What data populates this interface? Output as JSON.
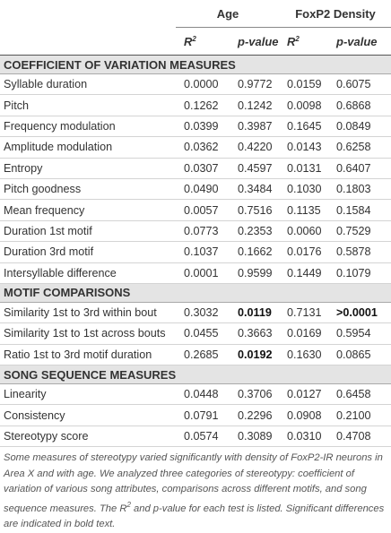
{
  "table": {
    "groups": [
      "Age",
      "FoxP2 Density"
    ],
    "columns": [
      {
        "text": "R",
        "sup": "2"
      },
      "p-value",
      {
        "text": "R",
        "sup": "2"
      },
      "p-value"
    ],
    "sections": [
      {
        "title": "COEFFICIENT OF VARIATION MEASURES",
        "rows": [
          {
            "label": "Syllable duration",
            "cells": [
              "0.0000",
              "0.9772",
              "0.0159",
              "0.6075"
            ]
          },
          {
            "label": "Pitch",
            "cells": [
              "0.1262",
              "0.1242",
              "0.0098",
              "0.6868"
            ]
          },
          {
            "label": "Frequency modulation",
            "cells": [
              "0.0399",
              "0.3987",
              "0.1645",
              "0.0849"
            ]
          },
          {
            "label": "Amplitude modulation",
            "cells": [
              "0.0362",
              "0.4220",
              "0.0143",
              "0.6258"
            ]
          },
          {
            "label": "Entropy",
            "cells": [
              "0.0307",
              "0.4597",
              "0.0131",
              "0.6407"
            ]
          },
          {
            "label": "Pitch goodness",
            "cells": [
              "0.0490",
              "0.3484",
              "0.1030",
              "0.1803"
            ]
          },
          {
            "label": "Mean frequency",
            "cells": [
              "0.0057",
              "0.7516",
              "0.1135",
              "0.1584"
            ]
          },
          {
            "label": "Duration 1st motif",
            "cells": [
              "0.0773",
              "0.2353",
              "0.0060",
              "0.7529"
            ]
          },
          {
            "label": "Duration 3rd motif",
            "cells": [
              "0.1037",
              "0.1662",
              "0.0176",
              "0.5878"
            ]
          },
          {
            "label": "Intersyllable difference",
            "cells": [
              "0.0001",
              "0.9599",
              "0.1449",
              "0.1079"
            ]
          }
        ]
      },
      {
        "title": "MOTIF COMPARISONS",
        "rows": [
          {
            "label": "Similarity 1st to 3rd within bout",
            "cells": [
              "0.3032",
              {
                "text": "0.0119",
                "bold": true
              },
              "0.7131",
              {
                "text": ">0.0001",
                "bold": true
              }
            ]
          },
          {
            "label": "Similarity 1st to 1st across bouts",
            "cells": [
              "0.0455",
              "0.3663",
              "0.0169",
              "0.5954"
            ]
          },
          {
            "label": "Ratio 1st to 3rd motif duration",
            "cells": [
              "0.2685",
              {
                "text": "0.0192",
                "bold": true
              },
              "0.1630",
              "0.0865"
            ]
          }
        ]
      },
      {
        "title": "SONG SEQUENCE MEASURES",
        "rows": [
          {
            "label": "Linearity",
            "cells": [
              "0.0448",
              "0.3706",
              "0.0127",
              "0.6458"
            ]
          },
          {
            "label": "Consistency",
            "cells": [
              "0.0791",
              "0.2296",
              "0.0908",
              "0.2100"
            ]
          },
          {
            "label": "Stereotypy score",
            "cells": [
              "0.0574",
              "0.3089",
              "0.0310",
              "0.4708"
            ]
          }
        ]
      }
    ]
  },
  "caption": {
    "before": "Some measures of stereotypy varied significantly with density of FoxP2-IR neurons in Area X and with age. We analyzed three categories of stereotypy: coefficient of variation of various song attributes, comparisons across different motifs, and song sequence measures. The R",
    "sup": "2",
    "after": " and p-value for each test is listed. Significant differences are indicated in bold text."
  }
}
